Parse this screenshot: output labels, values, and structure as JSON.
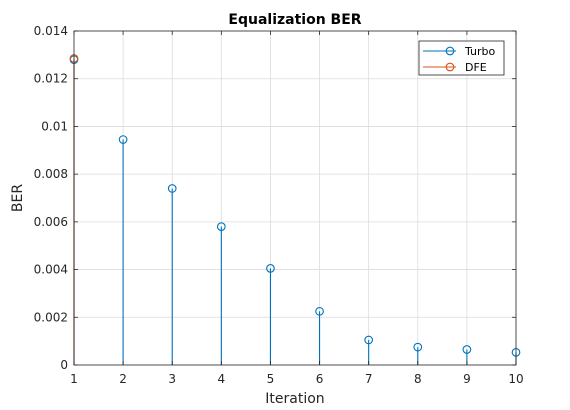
{
  "chart_data": {
    "type": "stem",
    "title": "Equalization BER",
    "xlabel": "Iteration",
    "ylabel": "BER",
    "xlim": [
      1,
      10
    ],
    "ylim": [
      0,
      0.014
    ],
    "grid": true,
    "legend_position": "top-right",
    "xticks": [
      "1",
      "2",
      "3",
      "4",
      "5",
      "6",
      "7",
      "8",
      "9",
      "10"
    ],
    "yticks": [
      "0",
      "0.002",
      "0.004",
      "0.006",
      "0.008",
      "0.01",
      "0.012",
      "0.014"
    ],
    "series": [
      {
        "name": "Turbo",
        "color": "#0072BD",
        "x": [
          1,
          2,
          3,
          4,
          5,
          6,
          7,
          8,
          9,
          10
        ],
        "y": [
          0.0128,
          0.00945,
          0.0074,
          0.0058,
          0.00405,
          0.00225,
          0.00105,
          0.00075,
          0.00065,
          0.00053
        ]
      },
      {
        "name": "DFE",
        "color": "#D95319",
        "x": [
          1
        ],
        "y": [
          0.01285
        ]
      }
    ]
  }
}
